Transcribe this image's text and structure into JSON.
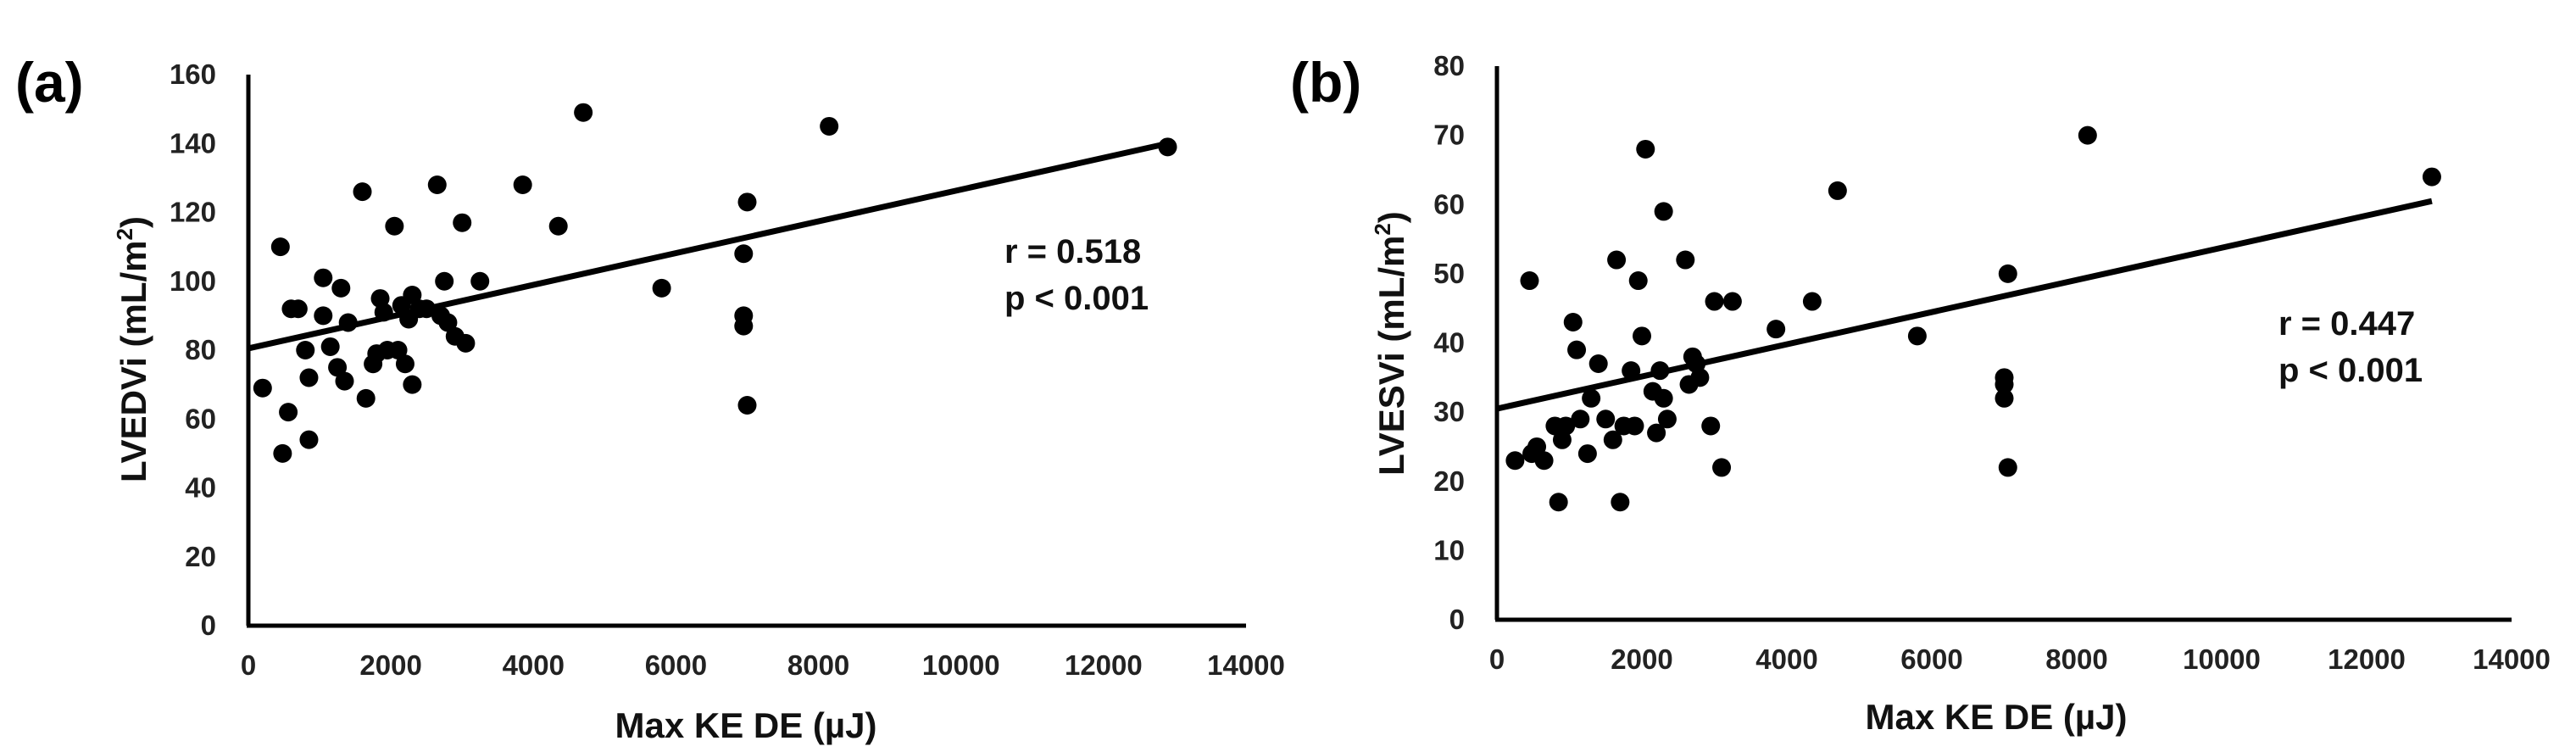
{
  "figure": {
    "background": "#ffffff",
    "marker_color": "#000000",
    "line_color": "#000000"
  },
  "chart_data": [
    {
      "type": "scatter",
      "panel_label": "(a)",
      "xlabel": "Max KE DE (µJ)",
      "ylabel_main": "LVEDVi (mL/m",
      "ylabel_sup": "2",
      "ylabel_close": ")",
      "xlim": [
        0,
        14000
      ],
      "ylim": [
        0,
        160
      ],
      "x_ticks": [
        0,
        2000,
        4000,
        6000,
        8000,
        10000,
        12000,
        14000
      ],
      "y_ticks": [
        0,
        20,
        40,
        60,
        80,
        100,
        120,
        140,
        160
      ],
      "trendline": {
        "x": [
          0,
          12900
        ],
        "y": [
          80.5,
          140
        ]
      },
      "stats": {
        "r": "r = 0.518",
        "p": "p < 0.001"
      },
      "points": [
        [
          200,
          69
        ],
        [
          450,
          110
        ],
        [
          480,
          50
        ],
        [
          560,
          62
        ],
        [
          600,
          92
        ],
        [
          700,
          92
        ],
        [
          800,
          80
        ],
        [
          850,
          54
        ],
        [
          850,
          72
        ],
        [
          1050,
          101
        ],
        [
          1050,
          90
        ],
        [
          1150,
          81
        ],
        [
          1250,
          75
        ],
        [
          1300,
          98
        ],
        [
          1350,
          71
        ],
        [
          1400,
          88
        ],
        [
          1600,
          126
        ],
        [
          1650,
          66
        ],
        [
          1750,
          76
        ],
        [
          1800,
          79
        ],
        [
          1850,
          95
        ],
        [
          1900,
          91
        ],
        [
          1950,
          80
        ],
        [
          2050,
          116
        ],
        [
          2100,
          80
        ],
        [
          2150,
          93
        ],
        [
          2200,
          76
        ],
        [
          2250,
          89
        ],
        [
          2300,
          96
        ],
        [
          2300,
          70
        ],
        [
          2400,
          92
        ],
        [
          2500,
          92
        ],
        [
          2650,
          128
        ],
        [
          2700,
          90
        ],
        [
          2750,
          100
        ],
        [
          2800,
          88
        ],
        [
          2900,
          84
        ],
        [
          3000,
          117
        ],
        [
          3050,
          82
        ],
        [
          3250,
          100
        ],
        [
          3850,
          128
        ],
        [
          4350,
          116
        ],
        [
          4700,
          149
        ],
        [
          5800,
          98
        ],
        [
          6950,
          108
        ],
        [
          6950,
          90
        ],
        [
          6950,
          87
        ],
        [
          7000,
          123
        ],
        [
          7000,
          64
        ],
        [
          8150,
          145
        ],
        [
          12900,
          139
        ]
      ]
    },
    {
      "type": "scatter",
      "panel_label": "(b)",
      "xlabel": "Max KE DE (µJ)",
      "ylabel_main": "LVESVi (mL/m",
      "ylabel_sup": "2",
      "ylabel_close": ")",
      "xlim": [
        0,
        14000
      ],
      "ylim": [
        0,
        80
      ],
      "x_ticks": [
        0,
        2000,
        4000,
        6000,
        8000,
        10000,
        12000,
        14000
      ],
      "y_ticks": [
        0,
        10,
        20,
        30,
        40,
        50,
        60,
        70,
        80
      ],
      "trendline": {
        "x": [
          0,
          12900
        ],
        "y": [
          30.5,
          60.5
        ]
      },
      "stats": {
        "r": "r = 0.447",
        "p": "p < 0.001"
      },
      "points": [
        [
          250,
          23
        ],
        [
          450,
          49
        ],
        [
          480,
          24
        ],
        [
          550,
          25
        ],
        [
          650,
          23
        ],
        [
          800,
          28
        ],
        [
          850,
          17
        ],
        [
          900,
          26
        ],
        [
          950,
          28
        ],
        [
          1050,
          43
        ],
        [
          1100,
          39
        ],
        [
          1150,
          29
        ],
        [
          1250,
          24
        ],
        [
          1300,
          32
        ],
        [
          1400,
          37
        ],
        [
          1500,
          29
        ],
        [
          1600,
          26
        ],
        [
          1650,
          52
        ],
        [
          1700,
          17
        ],
        [
          1750,
          28
        ],
        [
          1850,
          36
        ],
        [
          1900,
          28
        ],
        [
          1950,
          49
        ],
        [
          2000,
          41
        ],
        [
          2050,
          68
        ],
        [
          2150,
          33
        ],
        [
          2200,
          27
        ],
        [
          2250,
          36
        ],
        [
          2300,
          59
        ],
        [
          2300,
          32
        ],
        [
          2350,
          29
        ],
        [
          2600,
          52
        ],
        [
          2650,
          34
        ],
        [
          2700,
          38
        ],
        [
          2750,
          37
        ],
        [
          2800,
          35
        ],
        [
          2950,
          28
        ],
        [
          3000,
          46
        ],
        [
          3100,
          22
        ],
        [
          3250,
          46
        ],
        [
          3850,
          42
        ],
        [
          4350,
          46
        ],
        [
          4700,
          62
        ],
        [
          5800,
          41
        ],
        [
          7000,
          35
        ],
        [
          7000,
          34
        ],
        [
          7000,
          32
        ],
        [
          7050,
          50
        ],
        [
          7050,
          22
        ],
        [
          8150,
          70
        ],
        [
          12900,
          64
        ]
      ]
    }
  ]
}
